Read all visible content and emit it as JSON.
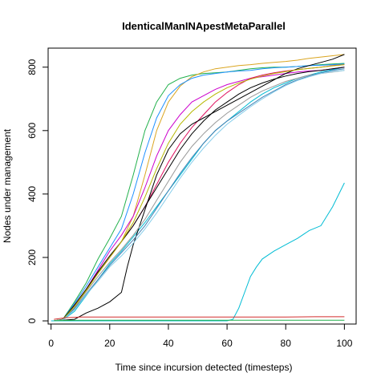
{
  "chart_data": {
    "type": "line",
    "title": "IdenticalManINApestMetaParallel",
    "xlabel": "Time since incursion detected (timesteps)",
    "ylabel": "Nodes under management",
    "xlim": [
      -1,
      104
    ],
    "ylim": [
      -10,
      860
    ],
    "xticks": [
      0,
      20,
      40,
      60,
      80,
      100
    ],
    "yticks": [
      0,
      200,
      400,
      600,
      800
    ],
    "grid": false,
    "legend": "none",
    "series": [
      {
        "color": "#22B14C",
        "x": [
          1,
          4,
          8,
          12,
          16,
          20,
          24,
          28,
          32,
          36,
          40,
          44,
          48,
          52,
          56,
          60,
          64,
          68,
          72,
          76,
          80,
          84,
          88,
          92,
          96,
          100
        ],
        "y": [
          0,
          5,
          60,
          120,
          195,
          260,
          330,
          460,
          600,
          690,
          745,
          765,
          775,
          780,
          782,
          785,
          790,
          795,
          798,
          800,
          800,
          802,
          805,
          808,
          810,
          812
        ]
      },
      {
        "color": "#DAA520",
        "x": [
          1,
          4,
          8,
          12,
          16,
          20,
          24,
          28,
          32,
          36,
          40,
          44,
          48,
          52,
          56,
          60,
          64,
          68,
          72,
          76,
          80,
          84,
          88,
          92,
          96,
          100
        ],
        "y": [
          0,
          3,
          40,
          95,
          150,
          200,
          250,
          330,
          460,
          600,
          690,
          740,
          770,
          785,
          795,
          800,
          805,
          808,
          812,
          815,
          818,
          822,
          828,
          832,
          836,
          840
        ]
      },
      {
        "color": "#1E90FF",
        "x": [
          1,
          4,
          8,
          12,
          16,
          20,
          24,
          28,
          32,
          36,
          40,
          44,
          48,
          52,
          56,
          60,
          64,
          68,
          72,
          76,
          80,
          84,
          88,
          92,
          96,
          100
        ],
        "y": [
          0,
          4,
          55,
          110,
          170,
          230,
          290,
          400,
          530,
          640,
          710,
          745,
          765,
          775,
          780,
          785,
          788,
          790,
          795,
          798,
          800,
          802,
          805,
          806,
          808,
          810
        ]
      },
      {
        "color": "#00BCD4",
        "x": [
          1,
          4,
          8,
          12,
          16,
          20,
          24,
          28,
          32,
          36,
          40,
          44,
          48,
          52,
          56,
          60,
          64,
          68,
          72,
          76,
          80,
          84,
          88,
          92,
          96,
          100
        ],
        "y": [
          0,
          3,
          30,
          80,
          130,
          180,
          220,
          265,
          310,
          360,
          410,
          460,
          510,
          560,
          600,
          630,
          660,
          690,
          715,
          735,
          750,
          765,
          775,
          785,
          792,
          800
        ]
      },
      {
        "color": "#CC00CC",
        "x": [
          1,
          4,
          8,
          12,
          16,
          20,
          24,
          28,
          32,
          36,
          40,
          44,
          48,
          52,
          56,
          60,
          64,
          68,
          72,
          76,
          80,
          84,
          88,
          92,
          96,
          100
        ],
        "y": [
          0,
          4,
          50,
          100,
          160,
          220,
          270,
          330,
          420,
          520,
          600,
          650,
          690,
          710,
          730,
          745,
          755,
          765,
          770,
          775,
          780,
          785,
          788,
          790,
          795,
          800
        ]
      },
      {
        "color": "#E0115F",
        "x": [
          1,
          4,
          8,
          12,
          16,
          20,
          24,
          28,
          32,
          36,
          40,
          44,
          48,
          52,
          56,
          60,
          64,
          68,
          72,
          76,
          80,
          84,
          88,
          92,
          96,
          100
        ],
        "y": [
          0,
          4,
          48,
          98,
          150,
          200,
          250,
          300,
          360,
          430,
          500,
          560,
          610,
          650,
          690,
          720,
          745,
          765,
          775,
          782,
          788,
          792,
          796,
          800,
          805,
          808
        ]
      },
      {
        "color": "#000000",
        "x": [
          1,
          4,
          8,
          12,
          16,
          20,
          24,
          26,
          28,
          32,
          36,
          40,
          44,
          48,
          52,
          56,
          60,
          64,
          68,
          72,
          76,
          80,
          84,
          88,
          92,
          96,
          100
        ],
        "y": [
          0,
          2,
          5,
          25,
          40,
          60,
          90,
          170,
          240,
          350,
          460,
          540,
          590,
          620,
          640,
          660,
          680,
          700,
          720,
          740,
          760,
          780,
          795,
          805,
          815,
          825,
          840
        ]
      },
      {
        "color": "#000000",
        "x": [
          1,
          4,
          8,
          12,
          16,
          20,
          24,
          28,
          32,
          36,
          40,
          44,
          48,
          52,
          56,
          60,
          64,
          68,
          72,
          76,
          80,
          84,
          88,
          92,
          96,
          100
        ],
        "y": [
          0,
          5,
          50,
          100,
          155,
          205,
          250,
          300,
          360,
          420,
          480,
          540,
          590,
          630,
          665,
          690,
          715,
          735,
          750,
          762,
          772,
          780,
          786,
          790,
          795,
          800
        ]
      },
      {
        "color": "#999999",
        "x": [
          1,
          4,
          8,
          12,
          16,
          20,
          24,
          28,
          32,
          36,
          40,
          44,
          48,
          52,
          56,
          60,
          64,
          68,
          72,
          76,
          80,
          84,
          88,
          92,
          96,
          100
        ],
        "y": [
          0,
          3,
          42,
          92,
          140,
          185,
          225,
          270,
          320,
          380,
          440,
          500,
          550,
          590,
          625,
          655,
          680,
          705,
          725,
          740,
          755,
          765,
          775,
          780,
          785,
          790
        ]
      },
      {
        "color": "#B5B800",
        "x": [
          1,
          4,
          8,
          12,
          16,
          20,
          24,
          28,
          32,
          36,
          40,
          44,
          48,
          52,
          56,
          60,
          64,
          68,
          72,
          76,
          80,
          84,
          88,
          92,
          96,
          100
        ],
        "y": [
          0,
          4,
          46,
          96,
          150,
          200,
          250,
          310,
          390,
          480,
          560,
          620,
          660,
          690,
          715,
          735,
          750,
          762,
          772,
          780,
          786,
          792,
          796,
          800,
          804,
          808
        ]
      },
      {
        "color": "#4682B4",
        "x": [
          1,
          4,
          8,
          12,
          16,
          20,
          24,
          28,
          32,
          36,
          40,
          44,
          48,
          52,
          56,
          60,
          64,
          68,
          72,
          76,
          80,
          84,
          88,
          92,
          96,
          100
        ],
        "y": [
          0,
          3,
          38,
          85,
          130,
          175,
          215,
          255,
          300,
          355,
          410,
          465,
          515,
          560,
          600,
          630,
          655,
          680,
          705,
          725,
          745,
          760,
          772,
          782,
          790,
          795
        ]
      },
      {
        "color": "#87CEEB",
        "x": [
          1,
          4,
          8,
          12,
          16,
          20,
          24,
          28,
          32,
          36,
          40,
          44,
          48,
          52,
          56,
          60,
          64,
          68,
          72,
          76,
          80,
          84,
          88,
          92,
          96,
          100
        ],
        "y": [
          0,
          3,
          35,
          82,
          125,
          170,
          205,
          245,
          290,
          340,
          395,
          450,
          500,
          545,
          585,
          620,
          648,
          675,
          700,
          722,
          742,
          758,
          770,
          780,
          786,
          790
        ]
      },
      {
        "color": "#00BCD4",
        "x": [
          0,
          10,
          20,
          30,
          40,
          50,
          60,
          62,
          64,
          66,
          68,
          70,
          72,
          76,
          80,
          84,
          88,
          92,
          96,
          100
        ],
        "y": [
          0,
          0,
          0,
          0,
          0,
          0,
          0,
          5,
          40,
          90,
          140,
          170,
          195,
          220,
          240,
          260,
          285,
          300,
          360,
          435
        ]
      },
      {
        "color": "#D32F2F",
        "x": [
          1,
          5,
          10,
          20,
          30,
          40,
          50,
          60,
          70,
          80,
          90,
          100
        ],
        "y": [
          5,
          10,
          12,
          12,
          12,
          12,
          12,
          12,
          12,
          12,
          13,
          13
        ]
      },
      {
        "color": "#22B14C",
        "x": [
          1,
          10,
          20,
          30,
          40,
          50,
          60,
          70,
          80,
          90,
          100
        ],
        "y": [
          1,
          2,
          2,
          2,
          2,
          2,
          2,
          2,
          2,
          2,
          2
        ]
      }
    ]
  }
}
